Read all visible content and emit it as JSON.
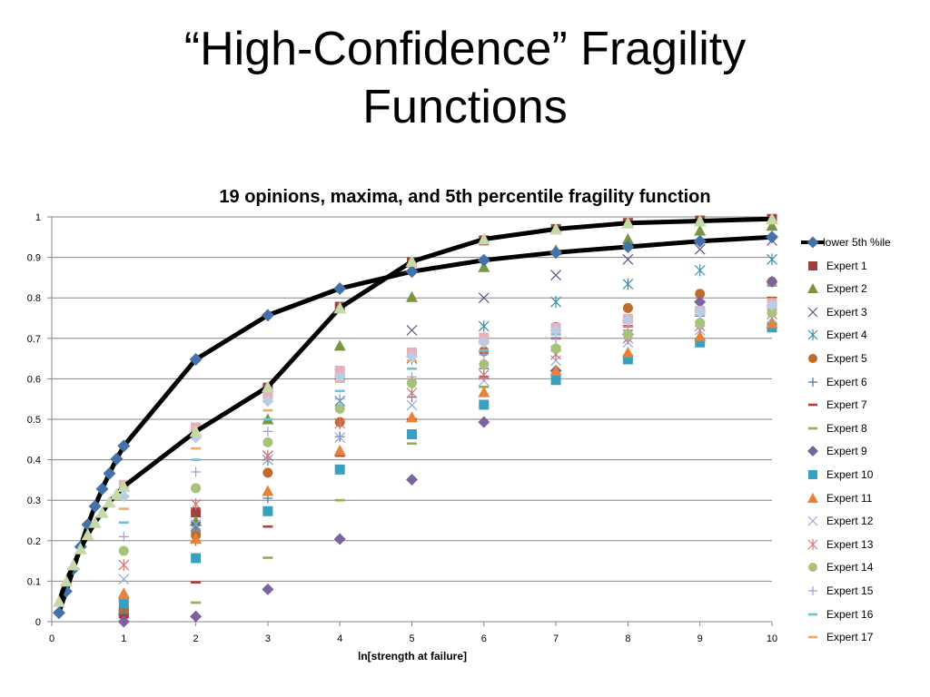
{
  "slide": {
    "title_line1": "“High-Confidence” Fragility",
    "title_line2": "Functions"
  },
  "chart_data": {
    "type": "scatter",
    "title": "19 opinions, maxima, and 5th percentile fragility function",
    "xlabel": "ln[strength at failure]",
    "ylabel": "",
    "xlim": [
      0,
      10
    ],
    "ylim": [
      0,
      1
    ],
    "x_ticks": [
      "0",
      "1",
      "2",
      "3",
      "4",
      "5",
      "6",
      "7",
      "8",
      "9",
      "10"
    ],
    "y_ticks": [
      "0",
      "0.1",
      "0.2",
      "0.3",
      "0.4",
      "0.5",
      "0.6",
      "0.7",
      "0.8",
      "0.9",
      "1"
    ],
    "grid": "horizontal",
    "legend_position": "right",
    "lines": [
      {
        "name": "lower 5th %ile",
        "color": "#4472a8",
        "line_color": "#000000",
        "marker": "diamond",
        "points": [
          [
            0.1,
            0.022
          ],
          [
            0.2,
            0.075
          ],
          [
            0.3,
            0.13
          ],
          [
            0.4,
            0.185
          ],
          [
            0.5,
            0.24
          ],
          [
            0.6,
            0.285
          ],
          [
            0.7,
            0.328
          ],
          [
            0.8,
            0.366
          ],
          [
            0.9,
            0.402
          ],
          [
            1.0,
            0.434
          ],
          [
            2.0,
            0.648
          ],
          [
            3.0,
            0.757
          ],
          [
            4.0,
            0.823
          ],
          [
            5.0,
            0.865
          ],
          [
            6.0,
            0.893
          ],
          [
            7.0,
            0.912
          ],
          [
            8.0,
            0.926
          ],
          [
            9.0,
            0.94
          ],
          [
            10.0,
            0.95
          ]
        ]
      },
      {
        "name": "",
        "color": "#c6d9a8",
        "line_color": "#000000",
        "marker": "triangle",
        "points": [
          [
            0.1,
            0.05
          ],
          [
            0.2,
            0.1
          ],
          [
            0.3,
            0.14
          ],
          [
            0.4,
            0.18
          ],
          [
            0.5,
            0.215
          ],
          [
            0.6,
            0.245
          ],
          [
            0.7,
            0.27
          ],
          [
            0.8,
            0.295
          ],
          [
            0.9,
            0.315
          ],
          [
            1.0,
            0.334
          ],
          [
            2.0,
            0.47
          ],
          [
            3.0,
            0.58
          ],
          [
            4.0,
            0.775
          ],
          [
            5.0,
            0.89
          ],
          [
            6.0,
            0.945
          ],
          [
            7.0,
            0.97
          ],
          [
            8.0,
            0.985
          ],
          [
            9.0,
            0.99
          ],
          [
            10.0,
            0.995
          ]
        ]
      }
    ],
    "series": [
      {
        "name": "Expert 1",
        "color": "#a0403e",
        "marker": "square",
        "points": [
          [
            1,
            0.02
          ],
          [
            2,
            0.27
          ],
          [
            3,
            0.578
          ],
          [
            4,
            0.778
          ],
          [
            5,
            0.888
          ],
          [
            6,
            0.942
          ],
          [
            7,
            0.97
          ],
          [
            8,
            0.985
          ],
          [
            9,
            0.991
          ],
          [
            10,
            0.995
          ]
        ]
      },
      {
        "name": "Expert 2",
        "color": "#789642",
        "marker": "triangle",
        "points": [
          [
            1,
            0.03
          ],
          [
            2,
            0.248
          ],
          [
            3,
            0.5
          ],
          [
            4,
            0.682
          ],
          [
            5,
            0.802
          ],
          [
            6,
            0.876
          ],
          [
            7,
            0.918
          ],
          [
            8,
            0.945
          ],
          [
            9,
            0.966
          ],
          [
            10,
            0.978
          ]
        ]
      },
      {
        "name": "Expert 3",
        "color": "#5e4f86",
        "marker": "x",
        "points": [
          [
            1,
            0.04
          ],
          [
            2,
            0.235
          ],
          [
            3,
            0.41
          ],
          [
            4,
            0.61
          ],
          [
            5,
            0.72
          ],
          [
            6,
            0.8
          ],
          [
            7,
            0.856
          ],
          [
            8,
            0.895
          ],
          [
            9,
            0.92
          ],
          [
            10,
            0.942
          ]
        ]
      },
      {
        "name": "Expert 4",
        "color": "#3b8ea6",
        "marker": "star",
        "points": [
          [
            1,
            0.045
          ],
          [
            2,
            0.23
          ],
          [
            3,
            0.4
          ],
          [
            4,
            0.545
          ],
          [
            5,
            0.65
          ],
          [
            6,
            0.73
          ],
          [
            7,
            0.79
          ],
          [
            8,
            0.834
          ],
          [
            9,
            0.868
          ],
          [
            10,
            0.895
          ]
        ]
      },
      {
        "name": "Expert 5",
        "color": "#c06b2a",
        "marker": "circle",
        "points": [
          [
            1,
            0.025
          ],
          [
            2,
            0.213
          ],
          [
            3,
            0.368
          ],
          [
            4,
            0.493
          ],
          [
            5,
            0.59
          ],
          [
            6,
            0.668
          ],
          [
            7,
            0.728
          ],
          [
            8,
            0.775
          ],
          [
            9,
            0.81
          ],
          [
            10,
            0.84
          ]
        ]
      },
      {
        "name": "Expert 6",
        "color": "#4f73a8",
        "marker": "plus",
        "points": [
          [
            1,
            0.02
          ],
          [
            2,
            0.2
          ],
          [
            3,
            0.305
          ],
          [
            4,
            0.457
          ],
          [
            5,
            0.555
          ],
          [
            6,
            0.625
          ],
          [
            7,
            0.68
          ],
          [
            8,
            0.72
          ],
          [
            9,
            0.755
          ],
          [
            10,
            0.78
          ]
        ]
      },
      {
        "name": "Expert 7",
        "color": "#b53a3a",
        "marker": "dash",
        "points": [
          [
            1,
            0.015
          ],
          [
            2,
            0.097
          ],
          [
            3,
            0.235
          ],
          [
            4,
            0.41
          ],
          [
            5,
            0.5
          ],
          [
            6,
            0.605
          ],
          [
            7,
            0.7
          ],
          [
            8,
            0.73
          ],
          [
            9,
            0.77
          ],
          [
            10,
            0.8
          ]
        ]
      },
      {
        "name": "Expert 8",
        "color": "#8fb04c",
        "marker": "dash",
        "points": [
          [
            2,
            0.047
          ],
          [
            3,
            0.158
          ],
          [
            4,
            0.3
          ],
          [
            5,
            0.44
          ],
          [
            6,
            0.58
          ],
          [
            7,
            0.67
          ],
          [
            8,
            0.74
          ],
          [
            9,
            0.79
          ],
          [
            10,
            0.83
          ]
        ]
      },
      {
        "name": "Expert 9",
        "color": "#7c63a0",
        "marker": "diamond",
        "points": [
          [
            1,
            0.0
          ],
          [
            2,
            0.013
          ],
          [
            3,
            0.08
          ],
          [
            4,
            0.204
          ],
          [
            5,
            0.351
          ],
          [
            6,
            0.493
          ],
          [
            7,
            0.62
          ],
          [
            8,
            0.71
          ],
          [
            9,
            0.79
          ],
          [
            10,
            0.84
          ]
        ]
      },
      {
        "name": "Expert 10",
        "color": "#3aa0bf",
        "marker": "square",
        "points": [
          [
            1,
            0.045
          ],
          [
            2,
            0.157
          ],
          [
            3,
            0.273
          ],
          [
            4,
            0.376
          ],
          [
            5,
            0.463
          ],
          [
            6,
            0.536
          ],
          [
            7,
            0.597
          ],
          [
            8,
            0.648
          ],
          [
            9,
            0.69
          ],
          [
            10,
            0.727
          ]
        ]
      },
      {
        "name": "Expert 11",
        "color": "#e8823a",
        "marker": "triangle",
        "points": [
          [
            1,
            0.07
          ],
          [
            2,
            0.205
          ],
          [
            3,
            0.323
          ],
          [
            4,
            0.423
          ],
          [
            5,
            0.505
          ],
          [
            6,
            0.567
          ],
          [
            7,
            0.62
          ],
          [
            8,
            0.665
          ],
          [
            9,
            0.705
          ],
          [
            10,
            0.738
          ]
        ]
      },
      {
        "name": "Expert 12",
        "color": "#8fa9d8",
        "marker": "x",
        "points": [
          [
            1,
            0.105
          ],
          [
            2,
            0.24
          ],
          [
            3,
            0.4
          ],
          [
            4,
            0.455
          ],
          [
            5,
            0.535
          ],
          [
            6,
            0.595
          ],
          [
            7,
            0.645
          ],
          [
            8,
            0.69
          ],
          [
            9,
            0.72
          ],
          [
            10,
            0.75
          ]
        ]
      },
      {
        "name": "Expert 13",
        "color": "#d27472",
        "marker": "star",
        "points": [
          [
            1,
            0.14
          ],
          [
            2,
            0.29
          ],
          [
            3,
            0.41
          ],
          [
            4,
            0.49
          ],
          [
            5,
            0.565
          ],
          [
            6,
            0.61
          ],
          [
            7,
            0.66
          ],
          [
            8,
            0.7
          ],
          [
            9,
            0.73
          ],
          [
            10,
            0.76
          ]
        ]
      },
      {
        "name": "Expert 14",
        "color": "#a9c27a",
        "marker": "circle",
        "points": [
          [
            1,
            0.175
          ],
          [
            2,
            0.33
          ],
          [
            3,
            0.443
          ],
          [
            4,
            0.526
          ],
          [
            5,
            0.589
          ],
          [
            6,
            0.636
          ],
          [
            7,
            0.675
          ],
          [
            8,
            0.71
          ],
          [
            9,
            0.738
          ],
          [
            10,
            0.763
          ]
        ]
      },
      {
        "name": "Expert 15",
        "color": "#a39bd0",
        "marker": "plus",
        "points": [
          [
            1,
            0.21
          ],
          [
            2,
            0.37
          ],
          [
            3,
            0.47
          ],
          [
            4,
            0.55
          ],
          [
            5,
            0.605
          ],
          [
            6,
            0.66
          ],
          [
            7,
            0.7
          ],
          [
            8,
            0.73
          ],
          [
            9,
            0.76
          ],
          [
            10,
            0.79
          ]
        ]
      },
      {
        "name": "Expert 16",
        "color": "#6fc2dc",
        "marker": "dash",
        "points": [
          [
            1,
            0.245
          ],
          [
            2,
            0.4
          ],
          [
            3,
            0.5
          ],
          [
            4,
            0.57
          ],
          [
            5,
            0.625
          ],
          [
            6,
            0.67
          ],
          [
            7,
            0.71
          ],
          [
            8,
            0.74
          ],
          [
            9,
            0.77
          ],
          [
            10,
            0.795
          ]
        ]
      },
      {
        "name": "Expert 17",
        "color": "#f5a860",
        "marker": "dash",
        "points": [
          [
            1,
            0.279
          ],
          [
            2,
            0.428
          ],
          [
            3,
            0.522
          ],
          [
            4,
            0.593
          ],
          [
            5,
            0.645
          ],
          [
            6,
            0.688
          ],
          [
            7,
            0.722
          ],
          [
            8,
            0.75
          ],
          [
            9,
            0.775
          ],
          [
            10,
            0.797
          ]
        ]
      },
      {
        "name": "",
        "color": "#e4b2b8",
        "marker": "square",
        "points": [
          [
            1,
            0.338
          ],
          [
            2,
            0.48
          ],
          [
            3,
            0.562
          ],
          [
            4,
            0.62
          ],
          [
            5,
            0.665
          ],
          [
            6,
            0.702
          ],
          [
            7,
            0.726
          ],
          [
            8,
            0.748
          ],
          [
            9,
            0.768
          ],
          [
            10,
            0.785
          ]
        ]
      },
      {
        "name": "",
        "color": "#b9cde6",
        "marker": "diamond",
        "points": [
          [
            1,
            0.31
          ],
          [
            2,
            0.455
          ],
          [
            3,
            0.545
          ],
          [
            4,
            0.605
          ],
          [
            5,
            0.655
          ],
          [
            6,
            0.69
          ],
          [
            7,
            0.72
          ],
          [
            8,
            0.745
          ],
          [
            9,
            0.765
          ],
          [
            10,
            0.782
          ]
        ]
      }
    ]
  }
}
